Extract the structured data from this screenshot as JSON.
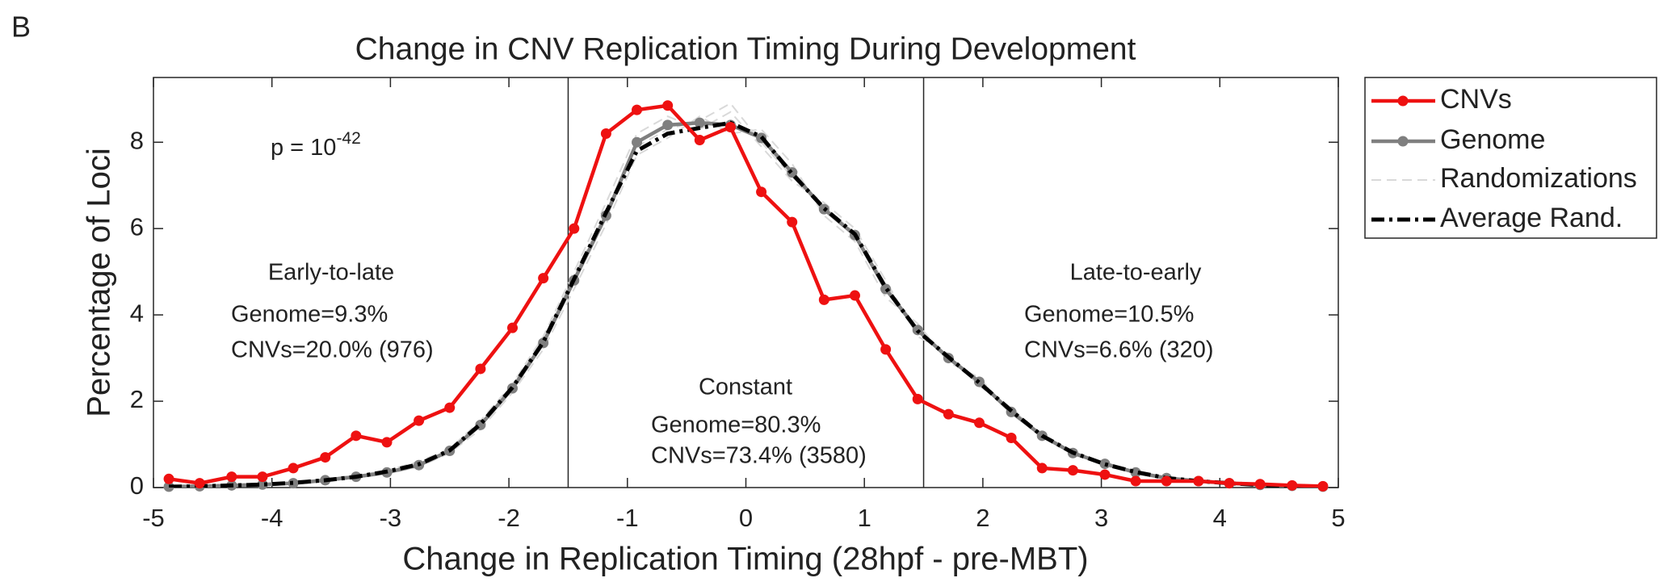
{
  "panel_label": "B",
  "chart_data": {
    "type": "line",
    "title": "Change in CNV Replication Timing During Development",
    "xlabel": "Change in Replication Timing (28hpf - pre-MBT)",
    "ylabel": "Percentage of Loci",
    "x": [
      -4.87,
      -4.61,
      -4.34,
      -4.08,
      -3.82,
      -3.55,
      -3.29,
      -3.03,
      -2.76,
      -2.5,
      -2.24,
      -1.97,
      -1.71,
      -1.45,
      -1.18,
      -0.92,
      -0.66,
      -0.39,
      -0.13,
      0.13,
      0.39,
      0.66,
      0.92,
      1.18,
      1.45,
      1.71,
      1.97,
      2.24,
      2.5,
      2.76,
      3.03,
      3.29,
      3.55,
      3.82,
      4.08,
      4.34,
      4.61,
      4.87
    ],
    "series": [
      {
        "name": "CNVs",
        "color": "#ee1111",
        "style": "solid-dots",
        "values": [
          0.2,
          0.1,
          0.25,
          0.25,
          0.45,
          0.7,
          1.2,
          1.05,
          1.55,
          1.85,
          2.75,
          3.7,
          4.85,
          6.0,
          8.2,
          8.75,
          8.85,
          8.05,
          8.35,
          6.85,
          6.15,
          4.35,
          4.45,
          3.2,
          2.05,
          1.7,
          1.5,
          1.15,
          0.45,
          0.4,
          0.3,
          0.15,
          0.15,
          0.15,
          0.1,
          0.08,
          0.05,
          0.03
        ]
      },
      {
        "name": "Genome",
        "color": "#7f7f7f",
        "style": "solid-dots",
        "values": [
          0.02,
          0.03,
          0.05,
          0.07,
          0.1,
          0.17,
          0.25,
          0.35,
          0.52,
          0.85,
          1.45,
          2.3,
          3.35,
          4.8,
          6.3,
          8.0,
          8.4,
          8.45,
          8.4,
          8.1,
          7.3,
          6.45,
          5.85,
          4.6,
          3.65,
          3.0,
          2.45,
          1.75,
          1.2,
          0.8,
          0.55,
          0.35,
          0.22,
          0.15,
          0.1,
          0.06,
          0.04,
          0.02
        ]
      },
      {
        "name": "Randomizations",
        "color": "#d9d9d9",
        "style": "dashed-runs",
        "values": [
          [
            0.03,
            0.04,
            0.06,
            0.08,
            0.12,
            0.2,
            0.28,
            0.4,
            0.6,
            0.9,
            1.55,
            2.4,
            3.5,
            5.0,
            6.6,
            8.2,
            8.6,
            8.3,
            8.7,
            7.9,
            7.1,
            6.6,
            6.0,
            4.8,
            3.5,
            3.1,
            2.35,
            1.85,
            1.15,
            0.85,
            0.5,
            0.38,
            0.2,
            0.16,
            0.12,
            0.07,
            0.05,
            0.03
          ],
          [
            0.02,
            0.02,
            0.04,
            0.06,
            0.09,
            0.15,
            0.22,
            0.32,
            0.48,
            0.8,
            1.35,
            2.2,
            3.2,
            4.6,
            6.1,
            7.7,
            8.1,
            8.6,
            8.2,
            8.3,
            7.5,
            6.3,
            5.7,
            4.4,
            3.8,
            2.9,
            2.55,
            1.7,
            1.25,
            0.75,
            0.58,
            0.33,
            0.24,
            0.14,
            0.09,
            0.05,
            0.03,
            0.02
          ],
          [
            0.02,
            0.03,
            0.05,
            0.07,
            0.11,
            0.18,
            0.26,
            0.37,
            0.55,
            0.88,
            1.5,
            2.35,
            3.4,
            4.9,
            6.4,
            7.9,
            8.3,
            8.5,
            8.9,
            8.0,
            7.2,
            6.5,
            5.9,
            4.7,
            3.6,
            3.05,
            2.4,
            1.8,
            1.2,
            0.82,
            0.54,
            0.36,
            0.23,
            0.15,
            0.1,
            0.06,
            0.04,
            0.02
          ]
        ]
      },
      {
        "name": "Average Rand.",
        "color": "#000000",
        "style": "dash-dot",
        "values": [
          0.02,
          0.03,
          0.05,
          0.07,
          0.11,
          0.17,
          0.25,
          0.37,
          0.54,
          0.86,
          1.47,
          2.32,
          3.37,
          4.83,
          6.37,
          7.8,
          8.2,
          8.33,
          8.45,
          8.13,
          7.27,
          6.47,
          5.87,
          4.63,
          3.63,
          3.02,
          2.43,
          1.78,
          1.2,
          0.81,
          0.54,
          0.36,
          0.22,
          0.15,
          0.1,
          0.06,
          0.04,
          0.02
        ]
      }
    ],
    "xlim": [
      -5,
      5
    ],
    "xticks": [
      -5,
      -4,
      -3,
      -2,
      -1,
      0,
      1,
      2,
      3,
      4,
      5
    ],
    "ylim": [
      0,
      9.5
    ],
    "yticks": [
      0,
      2,
      4,
      6,
      8
    ],
    "vlines": [
      -1.5,
      1.5
    ],
    "p_value": {
      "text": "p = 10",
      "exponent": "-42"
    },
    "annotations": [
      "Early-to-late",
      "Genome=9.3%",
      "CNVs=20.0% (976)",
      "Constant",
      "Genome=80.3%",
      "CNVs=73.4% (3580)",
      "Late-to-early",
      "Genome=10.5%",
      "CNVs=6.6% (320)"
    ],
    "legend": "outside-top-right"
  }
}
